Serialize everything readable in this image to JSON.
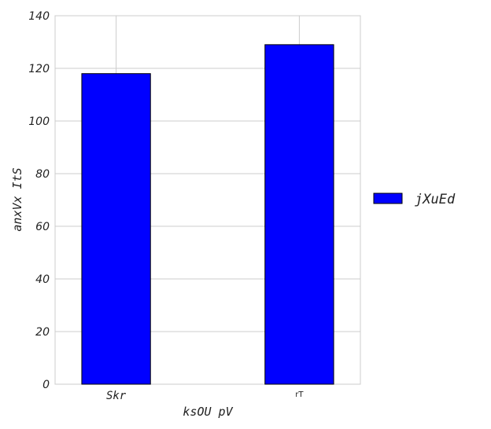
{
  "chart_data": {
    "type": "bar",
    "categories": [
      "Skr",
      "rT"
    ],
    "series": [
      {
        "name": "jXuEd",
        "values": [
          118,
          129
        ],
        "color": "#0000ff"
      }
    ],
    "xlabel": "ksOU pV",
    "ylabel": "anxVx ItS",
    "ylim": [
      0,
      140
    ],
    "yticks": [
      0,
      20,
      40,
      60,
      80,
      100,
      120,
      140
    ],
    "grid": true,
    "legend": "right"
  }
}
